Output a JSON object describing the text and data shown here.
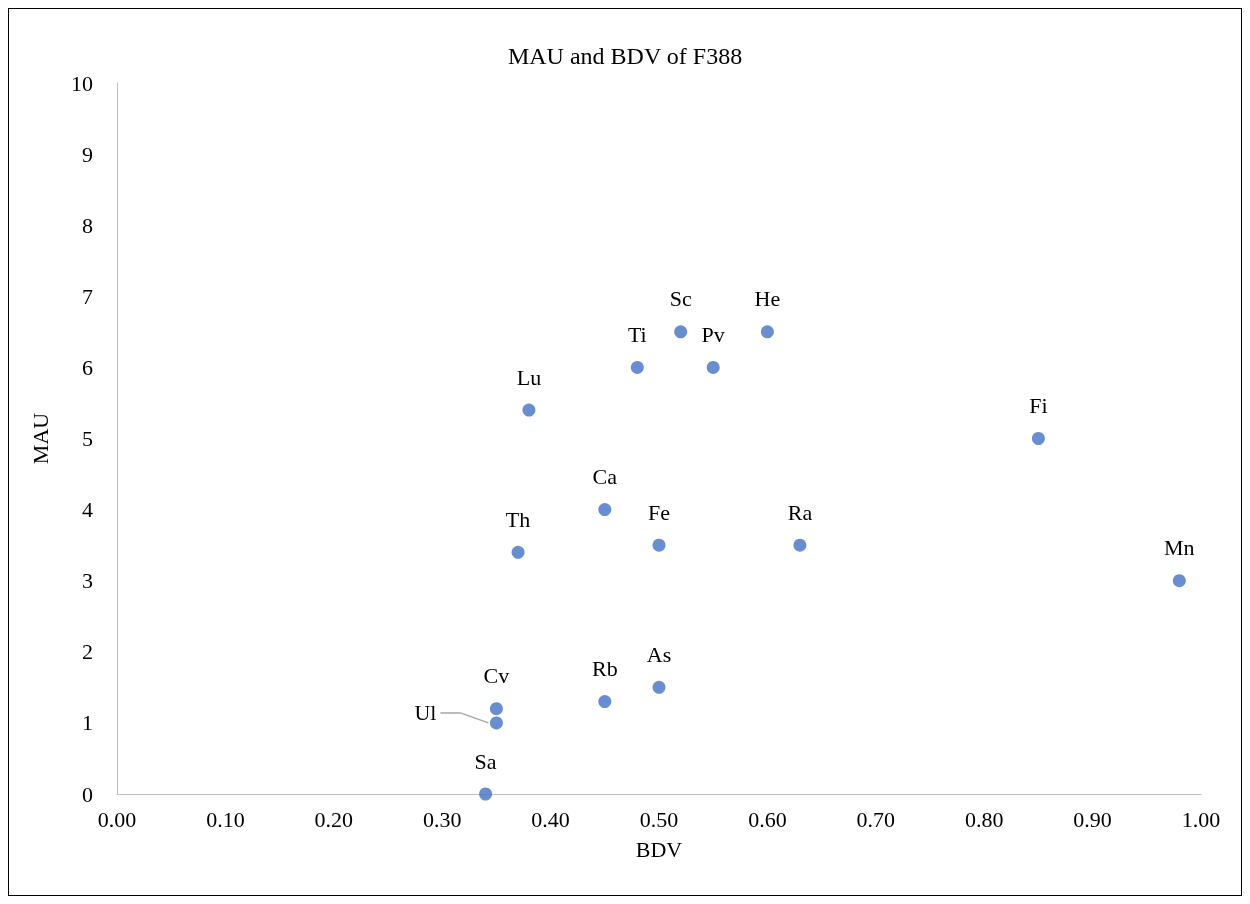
{
  "chart_data": {
    "type": "scatter",
    "title": "MAU and BDV of F388",
    "xlabel": "BDV",
    "ylabel": "MAU",
    "x": [
      0.34,
      0.35,
      0.35,
      0.45,
      0.5,
      0.37,
      0.45,
      0.5,
      0.63,
      0.98,
      0.38,
      0.48,
      0.52,
      0.55,
      0.6,
      0.85
    ],
    "series": [
      {
        "color": "#4472c4",
        "values": [
          0,
          1.0,
          1.2,
          1.3,
          1.5,
          3.4,
          4.0,
          3.5,
          3.5,
          3.0,
          5.4,
          6.0,
          6.5,
          6.0,
          6.5,
          5.0
        ]
      }
    ],
    "annotations": [
      {
        "text": "Sa",
        "x": 0.34,
        "y": 0
      },
      {
        "text": "Ul",
        "x": 0.35,
        "y": 1.0
      },
      {
        "text": "Cv",
        "x": 0.35,
        "y": 1.2
      },
      {
        "text": "Rb",
        "x": 0.45,
        "y": 1.3
      },
      {
        "text": "As",
        "x": 0.5,
        "y": 1.5
      },
      {
        "text": "Th",
        "x": 0.37,
        "y": 3.4
      },
      {
        "text": "Ca",
        "x": 0.45,
        "y": 4.0
      },
      {
        "text": "Fe",
        "x": 0.5,
        "y": 3.5
      },
      {
        "text": "Ra",
        "x": 0.63,
        "y": 3.5
      },
      {
        "text": "Mn",
        "x": 0.98,
        "y": 3.0
      },
      {
        "text": "Lu",
        "x": 0.38,
        "y": 5.4
      },
      {
        "text": "Ti",
        "x": 0.48,
        "y": 6.0
      },
      {
        "text": "Sc",
        "x": 0.52,
        "y": 6.5
      },
      {
        "text": "Pv",
        "x": 0.55,
        "y": 6.0
      },
      {
        "text": "He",
        "x": 0.6,
        "y": 6.5
      },
      {
        "text": "Fi",
        "x": 0.85,
        "y": 5.0
      }
    ],
    "xlim": [
      0,
      1
    ],
    "xticks": [
      {
        "value": 0,
        "label": "0.00"
      },
      {
        "value": 0.1,
        "label": "0.10"
      },
      {
        "value": 0.2,
        "label": "0.20"
      },
      {
        "value": 0.3,
        "label": "0.30"
      },
      {
        "value": 0.4,
        "label": "0.40"
      },
      {
        "value": 0.5,
        "label": "0.50"
      },
      {
        "value": 0.6,
        "label": "0.60"
      },
      {
        "value": 0.7,
        "label": "0.70"
      },
      {
        "value": 0.8,
        "label": "0.80"
      },
      {
        "value": 0.9,
        "label": "0.90"
      },
      {
        "value": 1,
        "label": "1.00"
      }
    ],
    "ylim": [
      0,
      10
    ],
    "yticks": [
      0,
      1,
      2,
      3,
      4,
      5,
      6,
      7,
      8,
      9,
      10
    ],
    "grid": false,
    "marker": "circle"
  }
}
